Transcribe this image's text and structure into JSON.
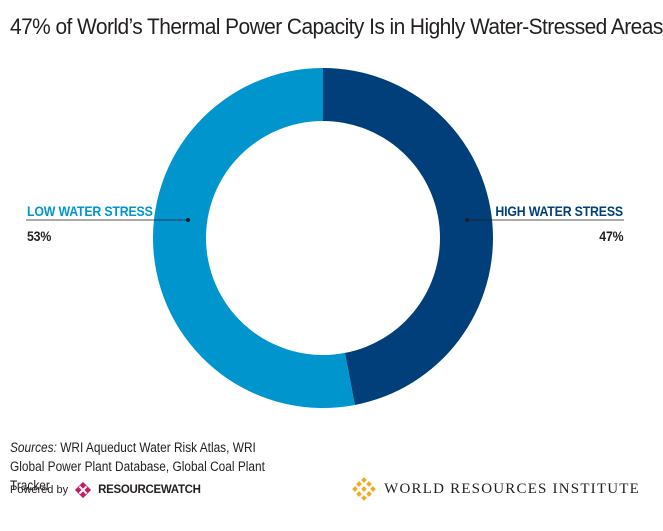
{
  "header": {
    "title": "47% of World’s Thermal Power Capacity Is in Highly Water-Stressed Areas"
  },
  "chart_data": {
    "type": "pie",
    "style": "donut",
    "slices": [
      {
        "label": "HIGH WATER STRESS",
        "value": 47,
        "value_label": "47%",
        "color": "#003f7a"
      },
      {
        "label": "LOW WATER STRESS",
        "value": 53,
        "value_label": "53%",
        "color": "#0095cd"
      }
    ]
  },
  "footer": {
    "sources_prefix": "Sources:",
    "sources_text": " WRI Aqueduct Water Risk Atlas, WRI Global Power Plant Database, Global Coal Plant Tracker",
    "powered_by": "Powered by",
    "rw_brand_a": "RESOURCE",
    "rw_brand_b": "WATCH",
    "wri_name": "WORLD RESOURCES INSTITUTE"
  },
  "colors": {
    "high": "#003f7a",
    "low": "#0095cd",
    "rw_logo": "#c31d68",
    "wri_logo": "#f0aa1e"
  },
  "icons": {
    "rw_logo": "resourcewatch-logo-icon",
    "wri_logo": "wri-logo-icon"
  }
}
